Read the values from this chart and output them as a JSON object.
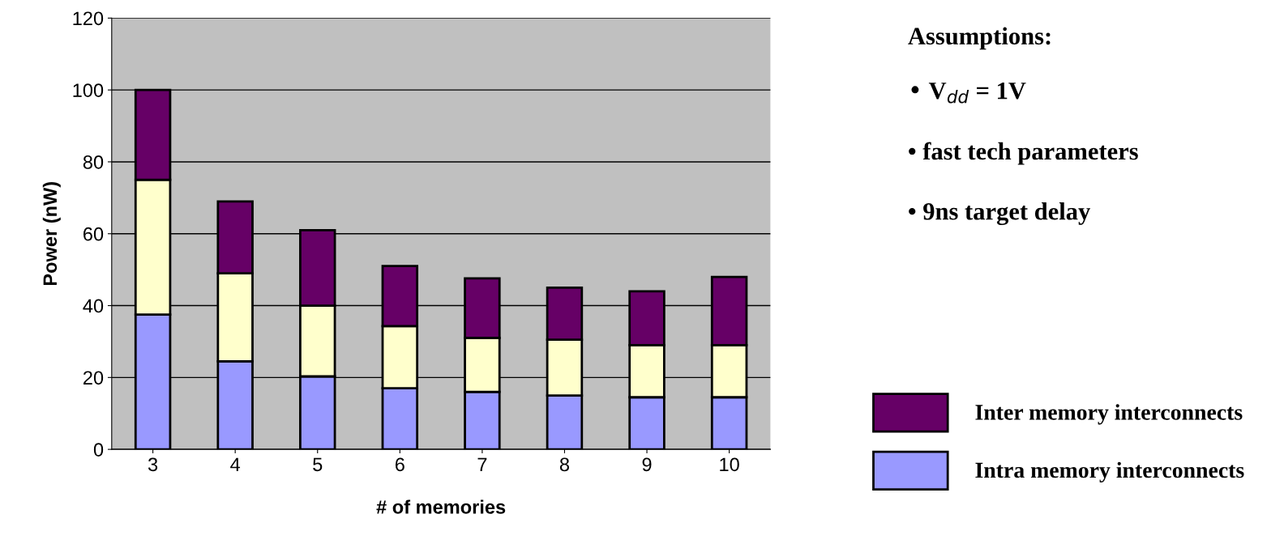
{
  "chart_data": {
    "type": "bar",
    "stacked": true,
    "xlabel": "# of memories",
    "ylabel": "Power (nW)",
    "categories": [
      "3",
      "4",
      "5",
      "6",
      "7",
      "8",
      "9",
      "10"
    ],
    "series": [
      {
        "name": "Intra memory interconnects",
        "color": "#9999ff",
        "values": [
          37.5,
          24.5,
          20.3,
          17,
          16,
          15,
          14.5,
          14.5
        ]
      },
      {
        "color": "#ffffcc",
        "values": [
          37.5,
          24.5,
          19.7,
          17.3,
          15,
          15.5,
          14.5,
          14.5
        ]
      },
      {
        "name": "Inter memory interconnects",
        "color": "#660066",
        "values": [
          25,
          20,
          21,
          16.7,
          16.6,
          14.5,
          15,
          19
        ]
      }
    ],
    "ylim": [
      0,
      120
    ],
    "yticks": [
      0,
      20,
      40,
      60,
      80,
      100,
      120
    ],
    "grid": "y",
    "legend": "bottom right",
    "annotations": [
      "Assumptions:",
      "• V$_{dd}$ = 1V",
      "• fast tech parameters",
      "• 9ns target delay"
    ]
  }
}
